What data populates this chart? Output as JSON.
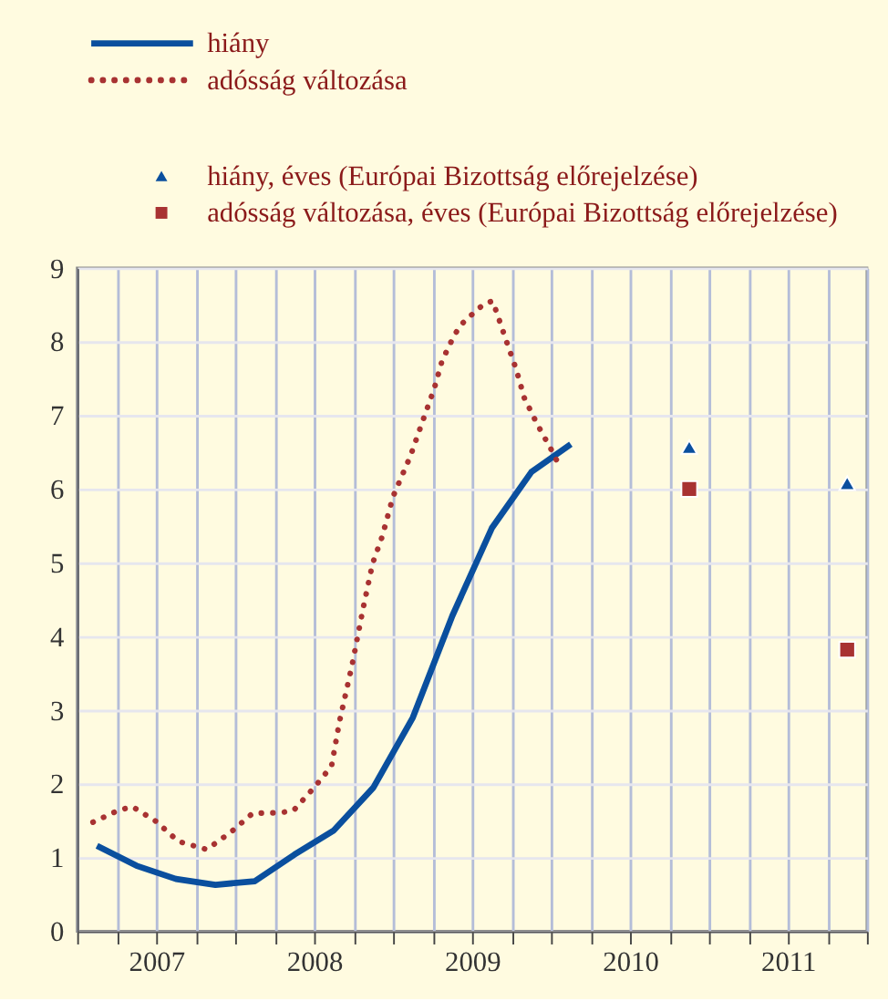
{
  "chart_data": {
    "type": "line",
    "legend": "top left",
    "grid": true,
    "xlim": [
      2007,
      2012
    ],
    "xticks": [
      {
        "value": 2007,
        "label": null
      },
      {
        "value": 2007.25,
        "label": null
      },
      {
        "value": 2007.5,
        "label": "2007"
      },
      {
        "value": 2007.75,
        "label": null
      },
      {
        "value": 2008,
        "label": null
      },
      {
        "value": 2008.25,
        "label": null
      },
      {
        "value": 2008.5,
        "label": "2008"
      },
      {
        "value": 2008.75,
        "label": null
      },
      {
        "value": 2009,
        "label": null
      },
      {
        "value": 2009.25,
        "label": null
      },
      {
        "value": 2009.5,
        "label": "2009"
      },
      {
        "value": 2009.75,
        "label": null
      },
      {
        "value": 2010,
        "label": null
      },
      {
        "value": 2010.25,
        "label": null
      },
      {
        "value": 2010.5,
        "label": "2010"
      },
      {
        "value": 2010.75,
        "label": null
      },
      {
        "value": 2011,
        "label": null
      },
      {
        "value": 2011.25,
        "label": null
      },
      {
        "value": 2011.5,
        "label": "2011"
      },
      {
        "value": 2011.75,
        "label": null
      },
      {
        "value": 2012,
        "label": null
      }
    ],
    "ylim": [
      0,
      9
    ],
    "yticks": [
      0,
      1,
      2,
      3,
      4,
      5,
      6,
      7,
      8,
      9
    ],
    "series": [
      {
        "name": "hiány",
        "line_style": "solid",
        "color": "#0a4f9e",
        "x": [
          2007.125,
          2007.375,
          2007.625,
          2007.875,
          2008.125,
          2008.375,
          2008.625,
          2008.875,
          2009.125,
          2009.375,
          2009.625,
          2009.875,
          2010.125
        ],
        "values": [
          1.16,
          0.89,
          0.71,
          0.63,
          0.68,
          1.04,
          1.37,
          1.95,
          2.9,
          4.28,
          5.47,
          6.23,
          6.61
        ]
      },
      {
        "name": "adósság változása",
        "line_style": "dotted",
        "color": "#a83232",
        "x": [
          2007.1,
          2007.26,
          2007.35,
          2007.5,
          2007.64,
          2007.82,
          2007.97,
          2008.11,
          2008.29,
          2008.37,
          2008.5,
          2008.61,
          2008.66,
          2008.74,
          2008.81,
          2008.87,
          2008.93,
          2009.0,
          2009.11,
          2009.2,
          2009.26,
          2009.31,
          2009.39,
          2009.44,
          2009.51,
          2009.58,
          2009.63,
          2009.66,
          2009.72,
          2009.78,
          2009.83,
          2009.91,
          2010.0,
          2010.04
        ],
        "values": [
          1.48,
          1.64,
          1.69,
          1.49,
          1.22,
          1.11,
          1.34,
          1.6,
          1.61,
          1.64,
          1.95,
          2.24,
          2.84,
          3.61,
          4.38,
          4.99,
          5.35,
          5.9,
          6.45,
          7.0,
          7.36,
          7.74,
          8.1,
          8.25,
          8.39,
          8.52,
          8.55,
          8.37,
          7.99,
          7.62,
          7.24,
          6.89,
          6.54,
          6.37
        ]
      },
      {
        "name": "hiány, éves (Európai Bizottság előrejelzése)",
        "type": "scatter",
        "marker": "triangle",
        "color": "#0a4f9e",
        "x": [
          2010.875,
          2011.875
        ],
        "values": [
          6.57,
          6.08
        ]
      },
      {
        "name": "adósság változása, éves (Európai Bizottság előrejelzése)",
        "type": "scatter",
        "marker": "square",
        "color": "#a83232",
        "x": [
          2010.875,
          2011.875
        ],
        "values": [
          6.0,
          3.82
        ]
      }
    ]
  }
}
